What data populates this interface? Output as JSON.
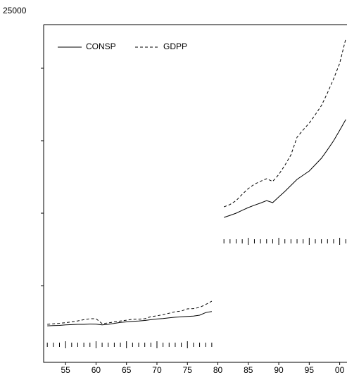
{
  "chart_data": {
    "type": "line",
    "y_top_label": "25000",
    "x": [
      1952,
      1953,
      1954,
      1955,
      1956,
      1957,
      1958,
      1959,
      1960,
      1961,
      1962,
      1963,
      1964,
      1965,
      1966,
      1967,
      1968,
      1969,
      1970,
      1971,
      1972,
      1973,
      1974,
      1975,
      1976,
      1977,
      1978,
      1979,
      1980,
      1981,
      1982,
      1983,
      1984,
      1985,
      1986,
      1987,
      1988,
      1989,
      1990,
      1991,
      1992,
      1993,
      1994,
      1995,
      1996,
      1997,
      1998,
      1999,
      2000,
      2001
    ],
    "series": [
      {
        "name": "CONSP",
        "color": "#000000",
        "dash": "solid",
        "values": [
          2230,
          2250,
          2260,
          2290,
          2310,
          2330,
          2330,
          2350,
          2340,
          2290,
          2330,
          2400,
          2460,
          2500,
          2540,
          2560,
          2600,
          2650,
          2700,
          2730,
          2780,
          2820,
          2850,
          2880,
          2900,
          2960,
          3140,
          3220,
          null,
          9710,
          9850,
          10000,
          10200,
          10390,
          10550,
          10700,
          10870,
          10730,
          11120,
          11500,
          11920,
          12330,
          12620,
          12910,
          13350,
          13790,
          14380,
          15000,
          15720,
          16460
        ]
      },
      {
        "name": "GDPP",
        "color": "#000000",
        "dash": "dashed",
        "values": [
          2330,
          2370,
          2400,
          2450,
          2500,
          2570,
          2650,
          2720,
          2720,
          2380,
          2430,
          2500,
          2560,
          2620,
          2680,
          2690,
          2720,
          2860,
          2920,
          3000,
          3100,
          3200,
          3250,
          3400,
          3420,
          3500,
          3700,
          3930,
          null,
          10440,
          10600,
          10870,
          11300,
          11700,
          12000,
          12200,
          12380,
          12190,
          12670,
          13300,
          14030,
          15240,
          15750,
          16210,
          16800,
          17430,
          18300,
          19270,
          20340,
          22040
        ]
      }
    ],
    "xlim": [
      1951.4,
      2001.2
    ],
    "xticks": [
      {
        "value": 1955,
        "label": "55"
      },
      {
        "value": 1960,
        "label": "60"
      },
      {
        "value": 1965,
        "label": "65"
      },
      {
        "value": 1970,
        "label": "70"
      },
      {
        "value": 1975,
        "label": "75"
      },
      {
        "value": 1980,
        "label": "80"
      },
      {
        "value": 1985,
        "label": "85"
      },
      {
        "value": 1990,
        "label": "90"
      },
      {
        "value": 1995,
        "label": "95"
      },
      {
        "value": 2000,
        "label": "00"
      }
    ],
    "ylim": [
      -290,
      23010
    ],
    "yticks": [
      5000,
      10000,
      15000,
      20000
    ],
    "grid": false,
    "legend": "top-left"
  }
}
